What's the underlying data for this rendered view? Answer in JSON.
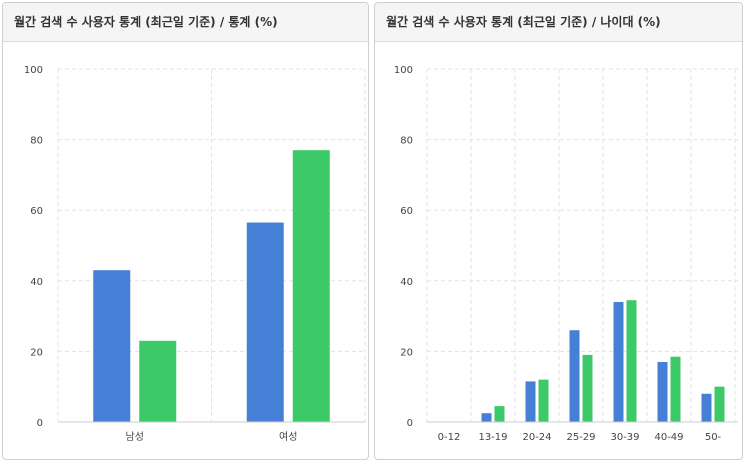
{
  "panels": [
    {
      "title": "월간 검색 수 사용자 통계 (최근일 기준) / 통계 (%)"
    },
    {
      "title": "월간 검색 수 사용자 통계 (최근일 기준) / 나이대 (%)"
    }
  ],
  "colors": {
    "series_a": "#4580d6",
    "series_b": "#3cc967",
    "grid": "#e3e3e3",
    "axis": "#cccccc"
  },
  "chart_data": [
    {
      "type": "bar",
      "title": "월간 검색 수 사용자 통계 (최근일 기준) / 통계 (%)",
      "categories": [
        "남성",
        "여성"
      ],
      "series": [
        {
          "values": [
            43,
            56.5
          ]
        },
        {
          "values": [
            23,
            77
          ]
        }
      ],
      "ylim": [
        0,
        100
      ],
      "yticks": [
        0,
        20,
        40,
        60,
        80,
        100
      ],
      "grid": true,
      "legend": "none"
    },
    {
      "type": "bar",
      "title": "월간 검색 수 사용자 통계 (최근일 기준) / 나이대 (%)",
      "categories": [
        "0-12",
        "13-19",
        "20-24",
        "25-29",
        "30-39",
        "40-49",
        "50-"
      ],
      "series": [
        {
          "values": [
            0,
            2.5,
            11.5,
            26,
            34,
            17,
            8
          ]
        },
        {
          "values": [
            0,
            4.5,
            12,
            19,
            34.5,
            18.5,
            10
          ]
        }
      ],
      "ylim": [
        0,
        100
      ],
      "yticks": [
        0,
        20,
        40,
        60,
        80,
        100
      ],
      "grid": true,
      "legend": "none"
    }
  ]
}
